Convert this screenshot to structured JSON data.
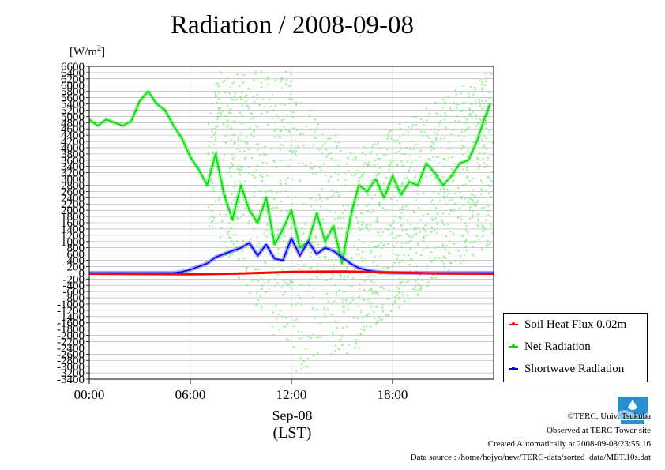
{
  "chart_data": {
    "type": "line",
    "title": "Radiation / 2008-09-08",
    "unit": "[W/m",
    "unit_sup": "2",
    "unit_close": "]",
    "x_ticks": [
      "00:00",
      "06:00",
      "12:00",
      "18:00"
    ],
    "x_date": "Sep-08",
    "x_label": "(LST)",
    "xlim_hours": [
      0,
      24
    ],
    "ylim": [
      -3400,
      6600
    ],
    "y_ticks": [
      6600,
      6400,
      6200,
      6000,
      5800,
      5600,
      5400,
      5200,
      5000,
      4800,
      4600,
      4400,
      4200,
      4000,
      3800,
      3600,
      3400,
      3200,
      3000,
      2800,
      2600,
      2400,
      2200,
      2000,
      1800,
      1600,
      1400,
      1200,
      1000,
      800,
      600,
      400,
      200,
      0,
      -200,
      -400,
      -600,
      -800,
      -1000,
      -1200,
      -1400,
      -1600,
      -1800,
      -2000,
      -2200,
      -2400,
      -2600,
      -2800,
      -3000,
      -3200,
      -3400
    ],
    "grid": true,
    "legend_position": "bottom-right",
    "series": [
      {
        "name": "Soil Heat Flux 0.02m",
        "color": "#ff0000",
        "hours": [
          0,
          3,
          6,
          9,
          12,
          15,
          18,
          21,
          24
        ],
        "values": [
          -30,
          -40,
          -50,
          -20,
          30,
          40,
          10,
          -20,
          -30
        ]
      },
      {
        "name": "Net Radiation",
        "color": "#00dd00",
        "hours": [
          0,
          0.5,
          1.0,
          1.5,
          2.0,
          2.5,
          3.0,
          3.5,
          4.0,
          4.5,
          5.0,
          5.5,
          6.0,
          6.5,
          7.0,
          7.5,
          8.0,
          8.5,
          9.0,
          9.5,
          10.0,
          10.5,
          11.0,
          11.5,
          12.0,
          12.5,
          13.0,
          13.5,
          14.0,
          14.5,
          15.0,
          15.3,
          15.6,
          16.0,
          16.5,
          17.0,
          17.5,
          18.0,
          18.5,
          19.0,
          19.5,
          20.0,
          20.5,
          21.0,
          21.5,
          22.0,
          22.5,
          23.0,
          23.5,
          23.8
        ],
        "values": [
          4900,
          4700,
          4900,
          4800,
          4700,
          4850,
          5500,
          5800,
          5400,
          5200,
          4700,
          4300,
          3700,
          3300,
          2800,
          3800,
          2500,
          1700,
          2800,
          2000,
          1600,
          2400,
          900,
          1400,
          2000,
          800,
          1000,
          1900,
          1000,
          1500,
          300,
          1200,
          2000,
          2800,
          2600,
          3000,
          2400,
          3100,
          2500,
          2900,
          2800,
          3500,
          3200,
          2800,
          3100,
          3500,
          3600,
          4200,
          5000,
          5400
        ]
      },
      {
        "name": "Shortwave Radiation",
        "color": "#0000ee",
        "hours": [
          0,
          5.0,
          5.5,
          6.0,
          6.5,
          7.0,
          7.5,
          8.0,
          8.5,
          9.0,
          9.5,
          10.0,
          10.5,
          11.0,
          11.5,
          12.0,
          12.5,
          13.0,
          13.5,
          14.0,
          14.5,
          15.0,
          15.5,
          16.0,
          16.5,
          17.0,
          17.5,
          18.0,
          24
        ],
        "values": [
          0,
          0,
          30,
          100,
          200,
          300,
          500,
          600,
          700,
          800,
          950,
          550,
          900,
          450,
          400,
          1100,
          550,
          1000,
          600,
          800,
          700,
          500,
          300,
          150,
          80,
          40,
          10,
          0,
          0
        ]
      }
    ]
  },
  "footer": {
    "copyright": "©TERC, Univ. Tsukuba",
    "observed": "Observed at TERC Tower site",
    "created": "Created Automatically at 2008-09-08/23:55:16",
    "source": "Data source : /home/hojyo/new/TERC-data/sorted_data/MET.10s.dat"
  }
}
